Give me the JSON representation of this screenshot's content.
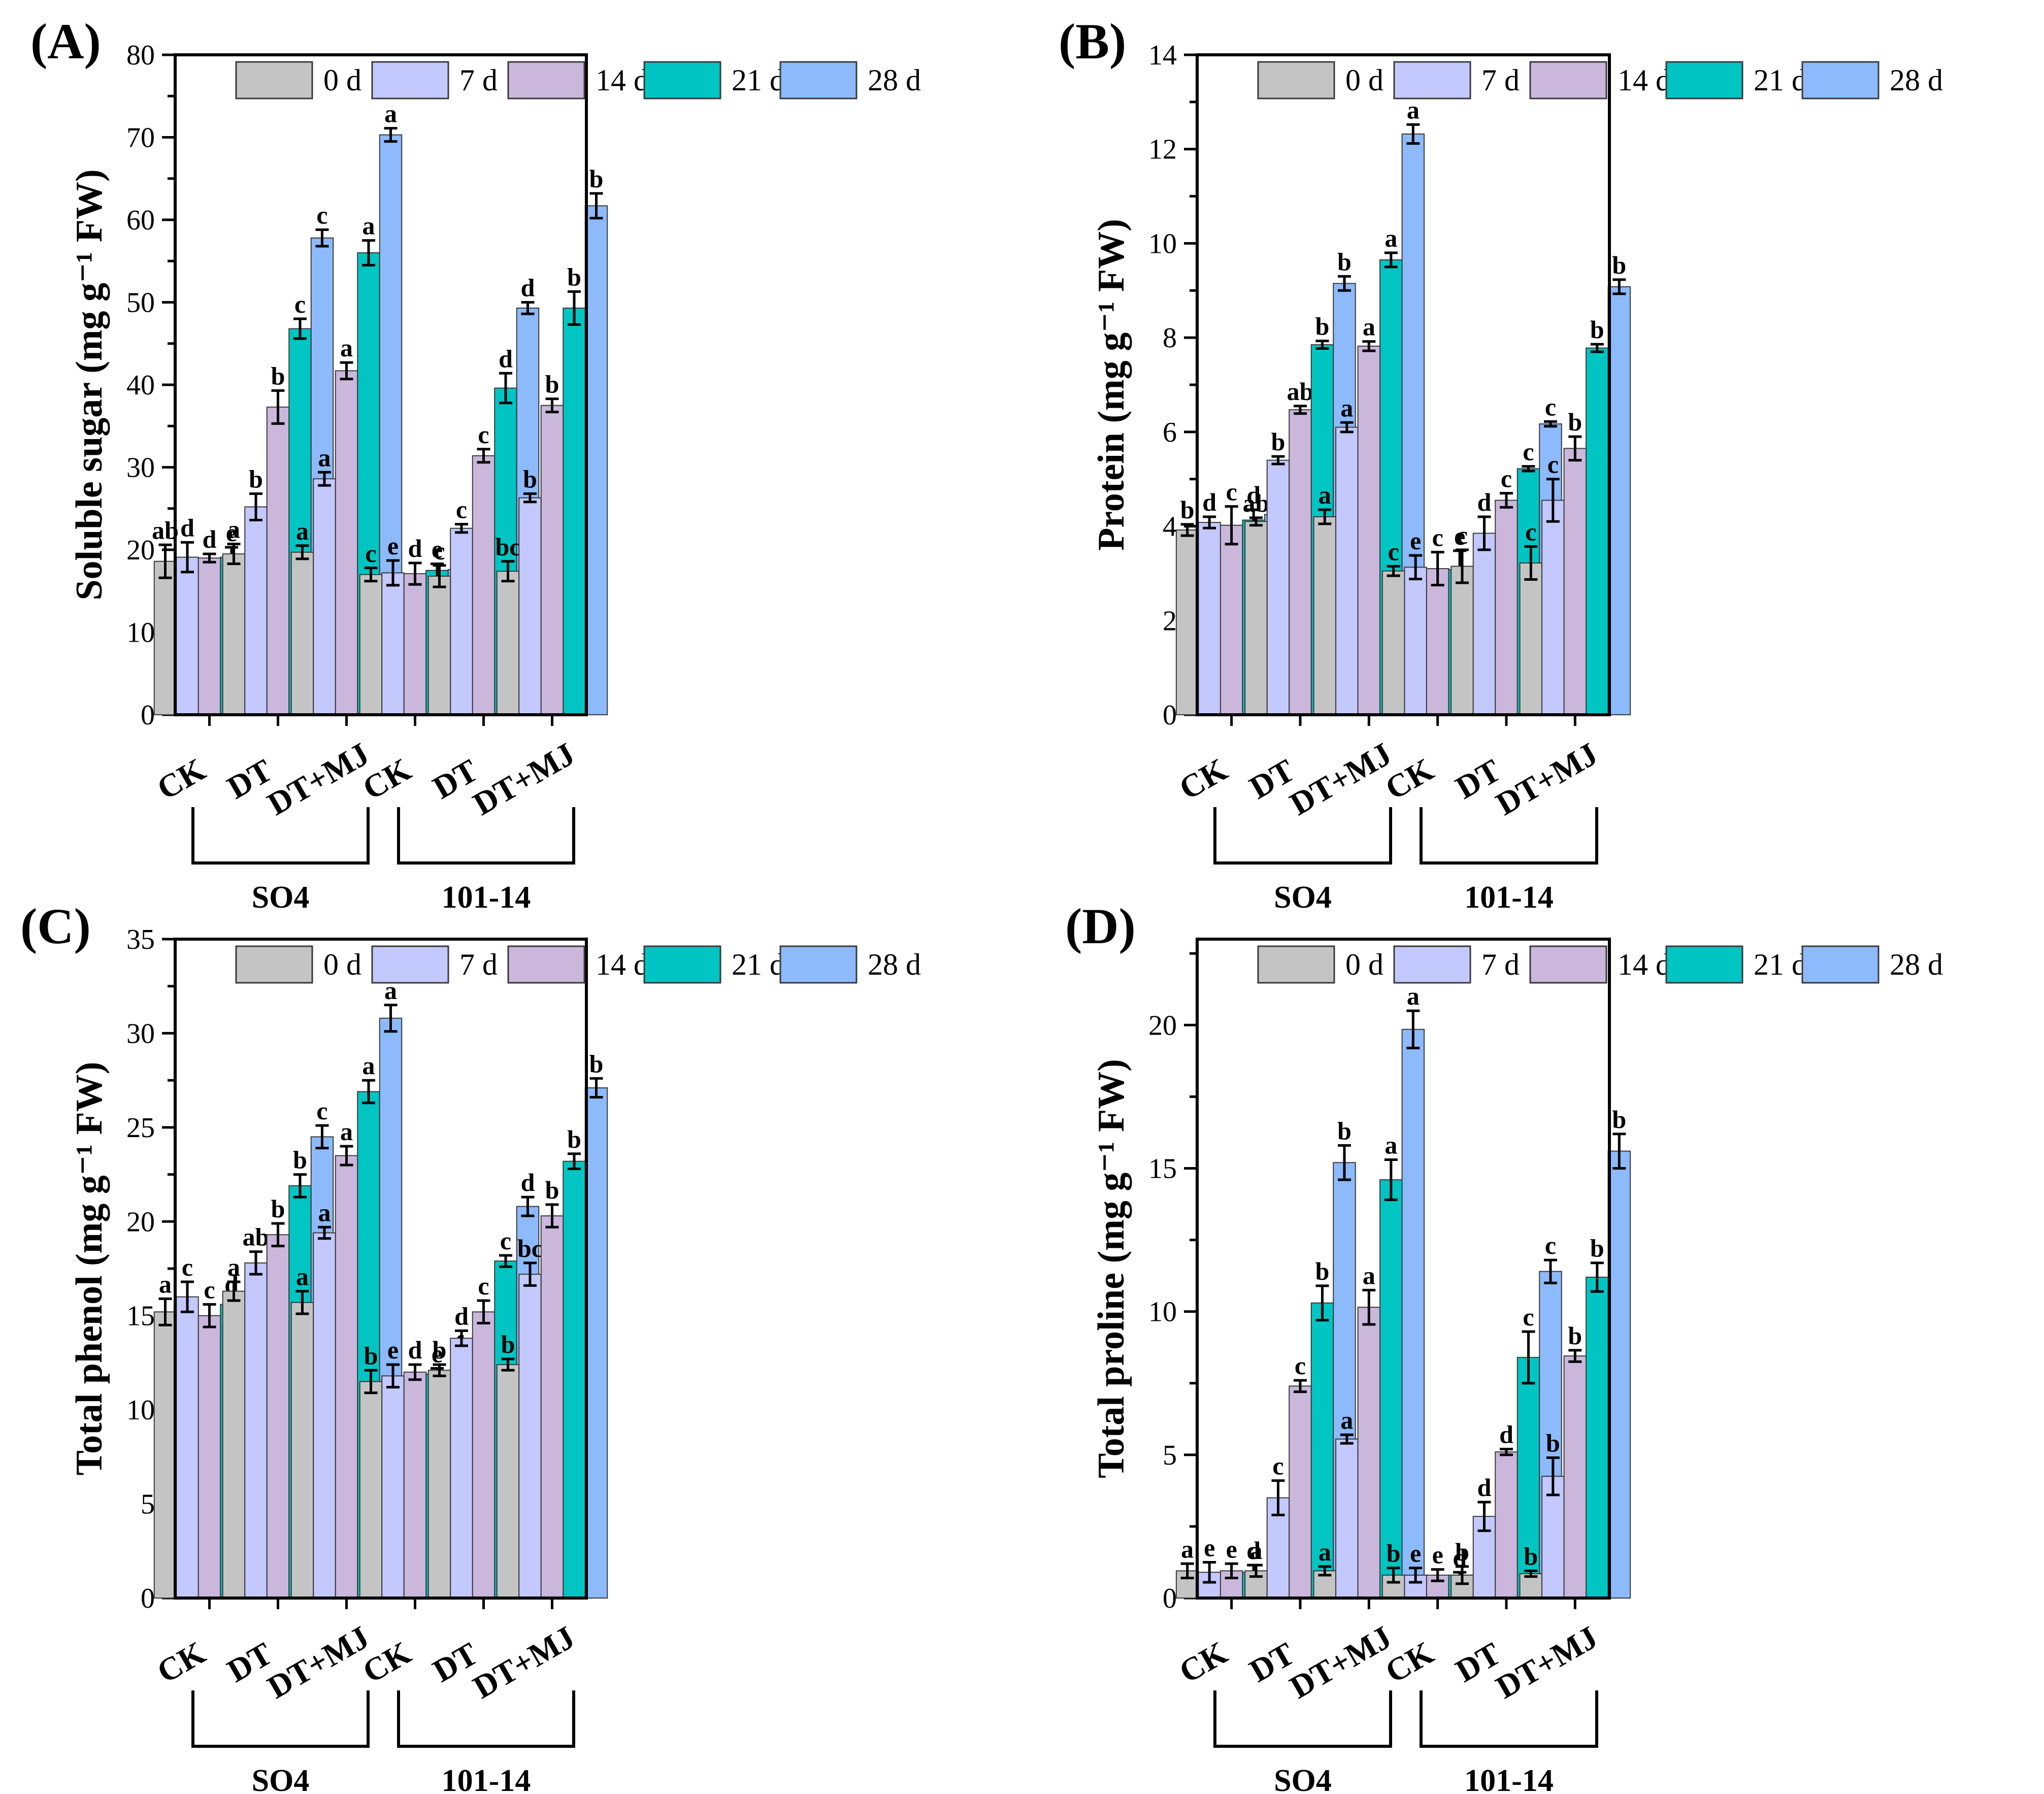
{
  "series_colors": [
    "#c4c4c4",
    "#c3c9fd",
    "#cbb7dc",
    "#00c5c2",
    "#8dbafa"
  ],
  "chart_data": [
    {
      "type": "bar",
      "panel": "(A)",
      "ylabel": "Soluble sugar  (mg g⁻¹ FW)",
      "ylim": [
        0,
        80
      ],
      "yticks": [
        0,
        10,
        20,
        30,
        40,
        50,
        60,
        70,
        80
      ],
      "legend": [
        "0 d",
        "7 d",
        "14 d",
        "21 d",
        "28 d"
      ],
      "categories": [
        "CK",
        "DT",
        "DT+MJ",
        "CK",
        "DT",
        "DT+MJ"
      ],
      "groups": [
        {
          "name": "SO4",
          "categories": [
            0,
            1,
            2
          ]
        },
        {
          "name": "101-14",
          "categories": [
            3,
            4,
            5
          ]
        }
      ],
      "values": [
        [
          18.6,
          19.1,
          19.0,
          19.1,
          19.2
        ],
        [
          19.5,
          25.2,
          37.3,
          46.8,
          57.8
        ],
        [
          19.7,
          28.6,
          41.7,
          56.0,
          70.3
        ],
        [
          17.0,
          17.2,
          17.1,
          17.5,
          17.6
        ],
        [
          16.8,
          22.6,
          31.4,
          39.6,
          49.3
        ],
        [
          17.4,
          26.3,
          37.5,
          49.3,
          61.7
        ]
      ],
      "errors": [
        [
          2.0,
          1.8,
          0.5,
          1.2,
          1.2
        ],
        [
          1.2,
          1.6,
          2.0,
          1.2,
          1.0
        ],
        [
          0.8,
          0.8,
          1.0,
          1.5,
          0.8
        ],
        [
          0.8,
          1.5,
          1.3,
          0.8,
          1.8
        ],
        [
          1.3,
          0.5,
          0.8,
          1.8,
          0.7
        ],
        [
          1.2,
          0.5,
          0.8,
          2.0,
          1.5
        ]
      ],
      "labels": [
        [
          "ab",
          "d",
          "d",
          "e",
          "e"
        ],
        [
          "a",
          "b",
          "b",
          "c",
          "c"
        ],
        [
          "a",
          "a",
          "a",
          "a",
          "a"
        ],
        [
          "c",
          "e",
          "d",
          "e",
          "e"
        ],
        [
          "c",
          "c",
          "c",
          "d",
          "d"
        ],
        [
          "bc",
          "b",
          "b",
          "b",
          "b"
        ]
      ]
    },
    {
      "type": "bar",
      "panel": "(B)",
      "ylabel": "Protein (mg g⁻¹ FW)",
      "ylim": [
        0,
        14
      ],
      "yticks": [
        0,
        2,
        4,
        6,
        8,
        10,
        12,
        14
      ],
      "legend": [
        "0 d",
        "7 d",
        "14 d",
        "21 d",
        "28 d"
      ],
      "categories": [
        "CK",
        "DT",
        "DT+MJ",
        "CK",
        "DT",
        "DT+MJ"
      ],
      "groups": [
        {
          "name": "SO4",
          "categories": [
            0,
            1,
            2
          ]
        },
        {
          "name": "101-14",
          "categories": [
            3,
            4,
            5
          ]
        }
      ],
      "values": [
        [
          3.92,
          4.08,
          4.02,
          4.13,
          4.25
        ],
        [
          4.1,
          5.4,
          6.47,
          7.85,
          9.15
        ],
        [
          4.2,
          6.1,
          7.82,
          9.65,
          12.32
        ],
        [
          3.05,
          3.13,
          3.1,
          3.08,
          3.13
        ],
        [
          3.15,
          3.85,
          4.55,
          5.22,
          6.17
        ],
        [
          3.22,
          4.55,
          5.65,
          7.78,
          9.08
        ]
      ],
      "errors": [
        [
          0.12,
          0.12,
          0.4,
          0.22,
          0.3
        ],
        [
          0.08,
          0.08,
          0.08,
          0.08,
          0.15
        ],
        [
          0.15,
          0.1,
          0.1,
          0.15,
          0.2
        ],
        [
          0.1,
          0.25,
          0.35,
          0.4,
          0.12
        ],
        [
          0.35,
          0.35,
          0.15,
          0.05,
          0.05
        ],
        [
          0.35,
          0.45,
          0.25,
          0.08,
          0.15
        ]
      ],
      "labels": [
        [
          "b",
          "d",
          "c",
          "d",
          "d"
        ],
        [
          "ab",
          "b",
          "ab",
          "b",
          "b"
        ],
        [
          "a",
          "a",
          "a",
          "a",
          "a"
        ],
        [
          "c",
          "e",
          "c",
          "e",
          "e"
        ],
        [
          "c",
          "d",
          "c",
          "c",
          "c"
        ],
        [
          "c",
          "c",
          "b",
          "b",
          "b"
        ]
      ]
    },
    {
      "type": "bar",
      "panel": "(C)",
      "ylabel": "Total phenol (mg g⁻¹ FW)",
      "ylim": [
        0,
        35
      ],
      "yticks": [
        0,
        5,
        10,
        15,
        20,
        25,
        30,
        35
      ],
      "legend": [
        "0 d",
        "7 d",
        "14 d",
        "21 d",
        "28 d"
      ],
      "categories": [
        "CK",
        "DT",
        "DT+MJ",
        "CK",
        "DT",
        "DT+MJ"
      ],
      "groups": [
        {
          "name": "SO4",
          "categories": [
            0,
            1,
            2
          ]
        },
        {
          "name": "101-14",
          "categories": [
            3,
            4,
            5
          ]
        }
      ],
      "values": [
        [
          15.2,
          16.0,
          15.0,
          15.6,
          15.8
        ],
        [
          16.3,
          17.8,
          19.3,
          21.9,
          24.5
        ],
        [
          15.7,
          19.4,
          23.5,
          26.9,
          30.8
        ],
        [
          11.5,
          11.8,
          12.0,
          11.9,
          12.1
        ],
        [
          12.1,
          13.8,
          15.2,
          17.9,
          20.8
        ],
        [
          12.4,
          17.2,
          20.3,
          23.2,
          27.1
        ]
      ],
      "errors": [
        [
          0.7,
          0.8,
          0.6,
          0.3,
          0.4
        ],
        [
          0.5,
          0.6,
          0.6,
          0.6,
          0.6
        ],
        [
          0.6,
          0.3,
          0.5,
          0.6,
          0.7
        ],
        [
          0.6,
          0.6,
          0.4,
          0.3,
          0.6
        ],
        [
          0.3,
          0.4,
          0.6,
          0.3,
          0.5
        ],
        [
          0.3,
          0.6,
          0.6,
          0.4,
          0.5
        ]
      ],
      "labels": [
        [
          "a",
          "c",
          "c",
          "d",
          "e"
        ],
        [
          "a",
          "ab",
          "b",
          "b",
          "c"
        ],
        [
          "a",
          "a",
          "a",
          "a",
          "a"
        ],
        [
          "b",
          "e",
          "d",
          "e",
          "f"
        ],
        [
          "b",
          "d",
          "c",
          "c",
          "d"
        ],
        [
          "b",
          "bc",
          "b",
          "b",
          "b"
        ]
      ]
    },
    {
      "type": "bar",
      "panel": "(D)",
      "ylabel": "Total proline (mg g⁻¹ FW)",
      "ylim": [
        0,
        23
      ],
      "yticks": [
        0,
        5,
        10,
        15,
        20
      ],
      "legend": [
        "0 d",
        "7 d",
        "14 d",
        "21 d",
        "28 d"
      ],
      "categories": [
        "CK",
        "DT",
        "DT+MJ",
        "CK",
        "DT",
        "DT+MJ"
      ],
      "groups": [
        {
          "name": "SO4",
          "categories": [
            0,
            1,
            2
          ]
        },
        {
          "name": "101-14",
          "categories": [
            3,
            4,
            5
          ]
        }
      ],
      "values": [
        [
          0.95,
          0.9,
          0.95,
          0.9,
          0.95
        ],
        [
          0.95,
          3.5,
          7.4,
          10.3,
          15.2
        ],
        [
          0.95,
          5.55,
          10.15,
          14.6,
          19.85
        ],
        [
          0.8,
          0.8,
          0.8,
          0.8,
          0.8
        ],
        [
          0.8,
          2.85,
          5.1,
          8.4,
          11.4
        ],
        [
          0.85,
          4.25,
          8.45,
          11.2,
          15.6
        ]
      ],
      "errors": [
        [
          0.25,
          0.35,
          0.25,
          0.25,
          0.25
        ],
        [
          0.2,
          0.6,
          0.2,
          0.6,
          0.6
        ],
        [
          0.15,
          0.15,
          0.6,
          0.7,
          0.65
        ],
        [
          0.25,
          0.25,
          0.2,
          0.1,
          0.2
        ],
        [
          0.3,
          0.5,
          0.1,
          0.9,
          0.4
        ],
        [
          0.1,
          0.65,
          0.2,
          0.5,
          0.6
        ]
      ],
      "labels": [
        [
          "a",
          "e",
          "e",
          "d",
          "d"
        ],
        [
          "a",
          "c",
          "c",
          "b",
          "b"
        ],
        [
          "a",
          "a",
          "a",
          "a",
          "a"
        ],
        [
          "b",
          "e",
          "e",
          "d",
          "d"
        ],
        [
          "b",
          "d",
          "d",
          "c",
          "c"
        ],
        [
          "b",
          "b",
          "b",
          "b",
          "b"
        ]
      ]
    }
  ]
}
